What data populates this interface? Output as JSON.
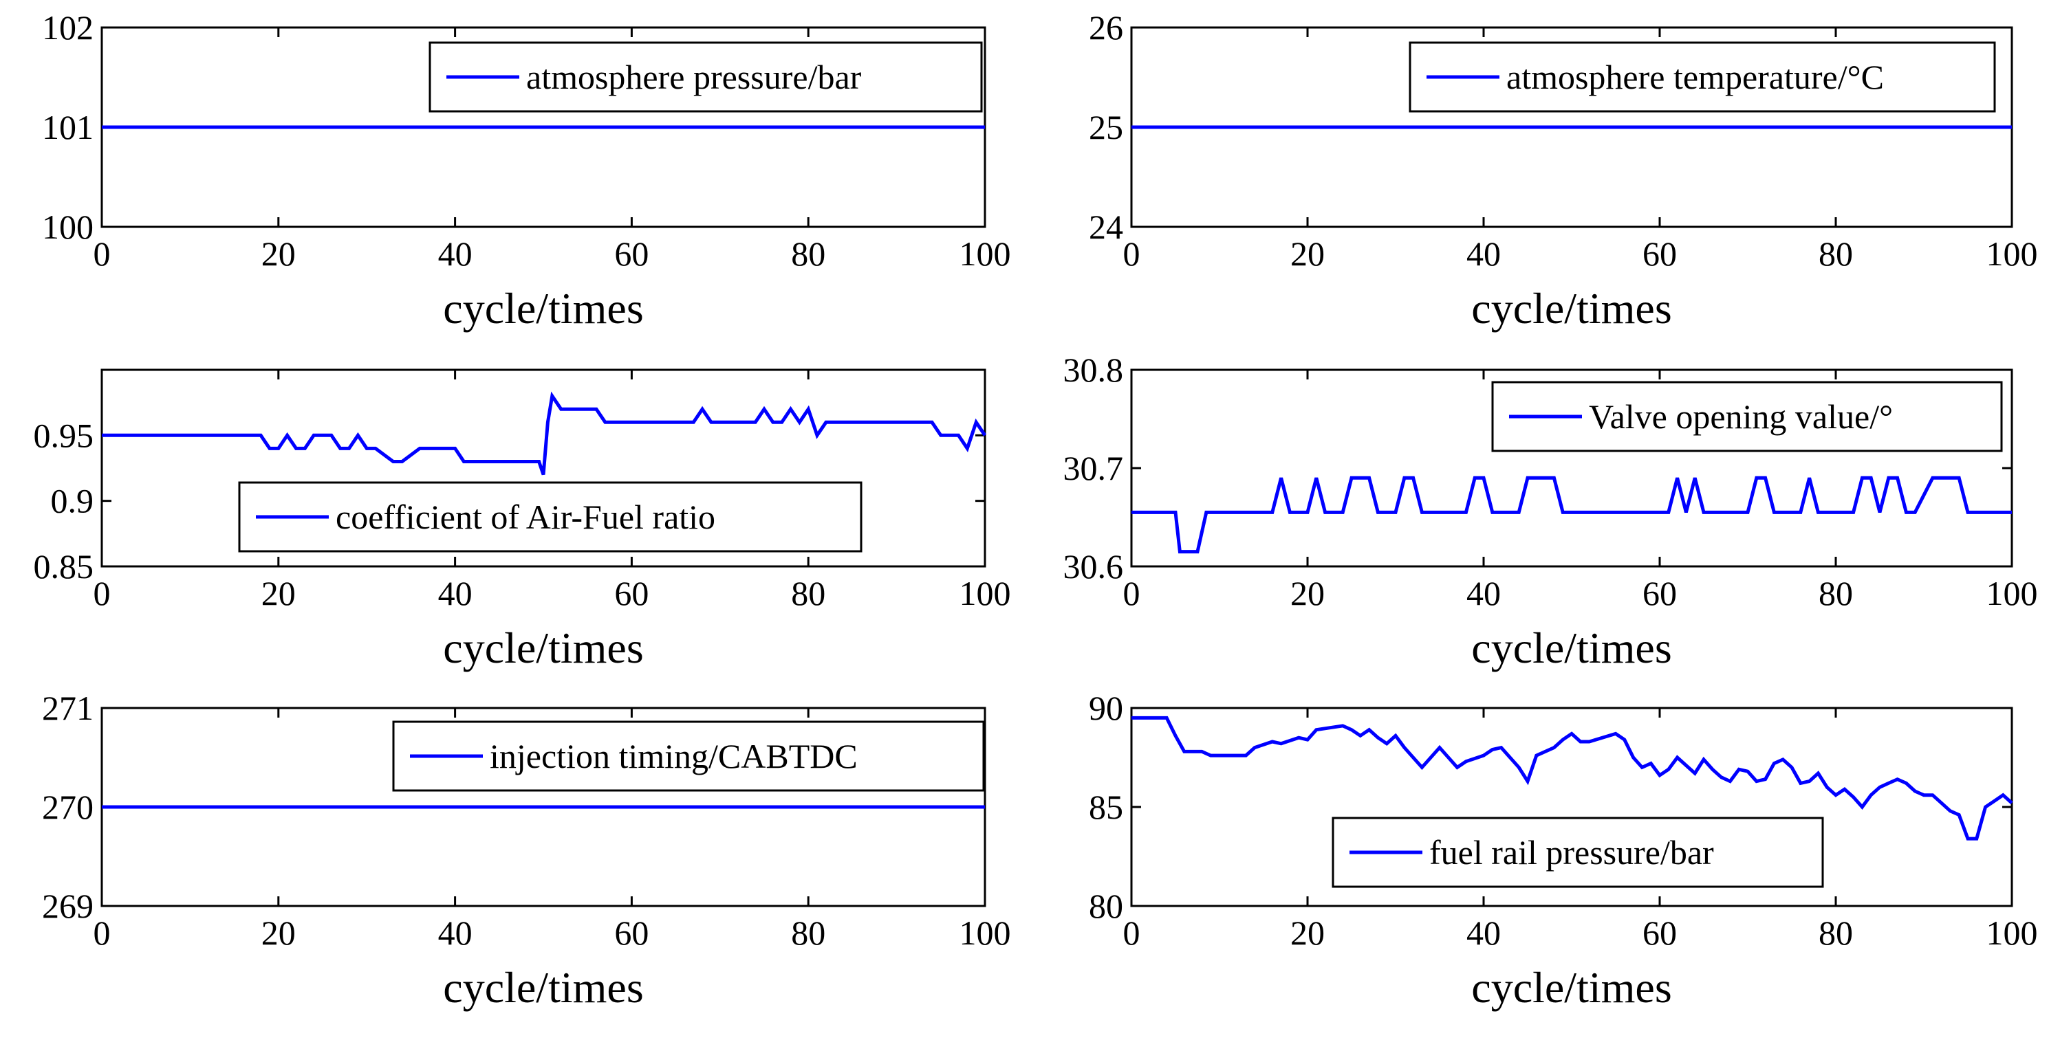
{
  "chart_data": [
    {
      "type": "line",
      "xlabel": "cycle/times",
      "xlim": [
        0,
        100
      ],
      "xticks": [
        0,
        20,
        40,
        60,
        80,
        100
      ],
      "ylim": [
        100,
        102
      ],
      "yticks": [
        100,
        101,
        102
      ],
      "ytick_labels": [
        "100",
        "101",
        "102"
      ],
      "legend": {
        "label": "atmosphere pressure/bar",
        "position": "top-right"
      },
      "series": [
        {
          "name": "atmosphere pressure/bar",
          "color": "#0000ff",
          "x": [
            0,
            100
          ],
          "y": [
            101,
            101
          ]
        }
      ]
    },
    {
      "type": "line",
      "xlabel": "cycle/times",
      "xlim": [
        0,
        100
      ],
      "xticks": [
        0,
        20,
        40,
        60,
        80,
        100
      ],
      "ylim": [
        24,
        26
      ],
      "yticks": [
        24,
        25,
        26
      ],
      "ytick_labels": [
        "24",
        "25",
        "26"
      ],
      "legend": {
        "label": "atmosphere temperature/°C",
        "position": "top-right"
      },
      "series": [
        {
          "name": "atmosphere temperature/°C",
          "color": "#0000ff",
          "x": [
            0,
            100
          ],
          "y": [
            25,
            25
          ]
        }
      ]
    },
    {
      "type": "line",
      "xlabel": "cycle/times",
      "xlim": [
        0,
        100
      ],
      "xticks": [
        0,
        20,
        40,
        60,
        80,
        100
      ],
      "ylim": [
        0.85,
        1.0
      ],
      "yticks": [
        0.85,
        0.9,
        0.95
      ],
      "ytick_labels": [
        "0.85",
        "0.9",
        "0.95"
      ],
      "legend": {
        "label": "coefficient of Air-Fuel ratio",
        "position": "bottom-center"
      },
      "series": [
        {
          "name": "coefficient of Air-Fuel ratio",
          "color": "#0000ff",
          "x": [
            0,
            18,
            19,
            20,
            21,
            22,
            23,
            24,
            26,
            27,
            28,
            29,
            30,
            31,
            33,
            34,
            36,
            40,
            41,
            49.5,
            50,
            50.5,
            51,
            52,
            56,
            57,
            67,
            68,
            69,
            74,
            75,
            76,
            77,
            78,
            79,
            80,
            81,
            82,
            94,
            95,
            97,
            98,
            99,
            100
          ],
          "y": [
            0.95,
            0.95,
            0.94,
            0.94,
            0.95,
            0.94,
            0.94,
            0.95,
            0.95,
            0.94,
            0.94,
            0.95,
            0.94,
            0.94,
            0.93,
            0.93,
            0.94,
            0.94,
            0.93,
            0.93,
            0.92,
            0.96,
            0.98,
            0.97,
            0.97,
            0.96,
            0.96,
            0.97,
            0.96,
            0.96,
            0.97,
            0.96,
            0.96,
            0.97,
            0.96,
            0.97,
            0.95,
            0.96,
            0.96,
            0.95,
            0.95,
            0.94,
            0.96,
            0.95
          ]
        }
      ]
    },
    {
      "type": "line",
      "xlabel": "cycle/times",
      "xlim": [
        0,
        100
      ],
      "xticks": [
        0,
        20,
        40,
        60,
        80,
        100
      ],
      "ylim": [
        30.6,
        30.8
      ],
      "yticks": [
        30.6,
        30.7,
        30.8
      ],
      "ytick_labels": [
        "30.6",
        "30.7",
        "30.8"
      ],
      "legend": {
        "label": "Valve opening value/°",
        "position": "top-right"
      },
      "series": [
        {
          "name": "Valve opening value/°",
          "color": "#0000ff",
          "x": [
            0,
            5,
            5.5,
            7.5,
            8.5,
            16,
            17,
            18,
            20,
            21,
            22,
            24,
            25,
            27,
            28,
            30,
            31,
            32,
            33,
            38,
            39,
            40,
            41,
            44,
            45,
            48,
            49,
            61,
            62,
            63,
            64,
            65,
            70,
            71,
            72,
            73,
            76,
            77,
            78,
            82,
            83,
            84,
            85,
            86,
            87,
            88,
            89,
            91,
            92,
            94,
            95,
            100
          ],
          "y": [
            30.655,
            30.655,
            30.615,
            30.615,
            30.655,
            30.655,
            30.69,
            30.655,
            30.655,
            30.69,
            30.655,
            30.655,
            30.69,
            30.69,
            30.655,
            30.655,
            30.69,
            30.69,
            30.655,
            30.655,
            30.69,
            30.69,
            30.655,
            30.655,
            30.69,
            30.69,
            30.655,
            30.655,
            30.69,
            30.655,
            30.69,
            30.655,
            30.655,
            30.69,
            30.69,
            30.655,
            30.655,
            30.69,
            30.655,
            30.655,
            30.69,
            30.69,
            30.655,
            30.69,
            30.69,
            30.655,
            30.655,
            30.69,
            30.69,
            30.69,
            30.655,
            30.655
          ]
        }
      ]
    },
    {
      "type": "line",
      "xlabel": "cycle/times",
      "xlim": [
        0,
        100
      ],
      "xticks": [
        0,
        20,
        40,
        60,
        80,
        100
      ],
      "ylim": [
        269,
        271
      ],
      "yticks": [
        269,
        270,
        271
      ],
      "ytick_labels": [
        "269",
        "270",
        "271"
      ],
      "legend": {
        "label": "injection timing/CABTDC",
        "position": "top-right"
      },
      "series": [
        {
          "name": "injection timing/CABTDC",
          "color": "#0000ff",
          "x": [
            0,
            100
          ],
          "y": [
            270,
            270
          ]
        }
      ]
    },
    {
      "type": "line",
      "xlabel": "cycle/times",
      "xlim": [
        0,
        100
      ],
      "xticks": [
        0,
        20,
        40,
        60,
        80,
        100
      ],
      "ylim": [
        80,
        90
      ],
      "yticks": [
        80,
        85,
        90
      ],
      "ytick_labels": [
        "80",
        "85",
        "90"
      ],
      "legend": {
        "label": "fuel rail pressure/bar",
        "position": "bottom-center"
      },
      "series": [
        {
          "name": "fuel rail pressure/bar",
          "color": "#0000ff",
          "x": [
            0,
            4,
            5,
            6,
            8,
            9,
            13,
            14,
            16,
            17,
            19,
            20,
            21,
            24,
            25,
            26,
            27,
            28,
            29,
            30,
            31,
            32,
            33,
            34,
            35,
            36,
            37,
            38,
            40,
            41,
            42,
            43,
            44,
            45,
            46,
            48,
            49,
            50,
            51,
            52,
            55,
            56,
            57,
            58,
            59,
            60,
            61,
            62,
            63,
            64,
            65,
            66,
            67,
            68,
            69,
            70,
            71,
            72,
            73,
            74,
            75,
            76,
            77,
            78,
            79,
            80,
            81,
            82,
            83,
            84,
            85,
            86,
            87,
            88,
            89,
            90,
            91,
            92,
            93,
            94,
            95,
            96,
            97,
            98,
            99,
            100
          ],
          "y": [
            89.5,
            89.5,
            88.6,
            87.8,
            87.8,
            87.6,
            87.6,
            88.0,
            88.3,
            88.2,
            88.5,
            88.4,
            88.9,
            89.1,
            88.9,
            88.6,
            88.9,
            88.5,
            88.2,
            88.6,
            88.0,
            87.5,
            87.0,
            87.5,
            88.0,
            87.5,
            87.0,
            87.3,
            87.6,
            87.9,
            88.0,
            87.5,
            87.0,
            86.3,
            87.6,
            88.0,
            88.4,
            88.7,
            88.3,
            88.3,
            88.7,
            88.4,
            87.5,
            87.0,
            87.2,
            86.6,
            86.9,
            87.5,
            87.1,
            86.7,
            87.4,
            86.9,
            86.5,
            86.3,
            86.9,
            86.8,
            86.3,
            86.4,
            87.2,
            87.4,
            87.0,
            86.2,
            86.3,
            86.7,
            86.0,
            85.6,
            85.9,
            85.5,
            85.0,
            85.6,
            86.0,
            86.2,
            86.4,
            86.2,
            85.8,
            85.6,
            85.6,
            85.2,
            84.8,
            84.6,
            83.4,
            83.4,
            85.0,
            85.3,
            85.6,
            85.2
          ]
        }
      ]
    }
  ]
}
